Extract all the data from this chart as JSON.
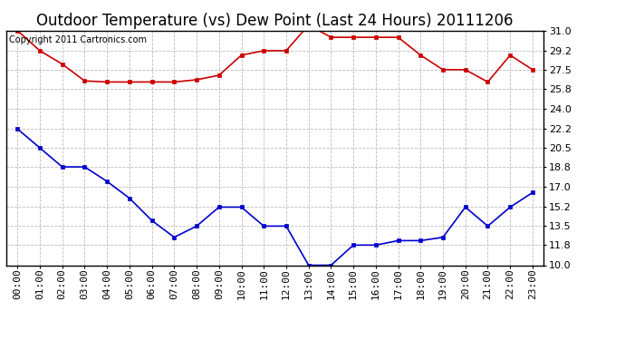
{
  "title": "Outdoor Temperature (vs) Dew Point (Last 24 Hours) 20111206",
  "copyright_text": "Copyright 2011 Cartronics.com",
  "x_labels": [
    "00:00",
    "01:00",
    "02:00",
    "03:00",
    "04:00",
    "05:00",
    "06:00",
    "07:00",
    "08:00",
    "09:00",
    "10:00",
    "11:00",
    "12:00",
    "13:00",
    "14:00",
    "15:00",
    "16:00",
    "17:00",
    "18:00",
    "19:00",
    "20:00",
    "21:00",
    "22:00",
    "23:00"
  ],
  "y_ticks": [
    10.0,
    11.8,
    13.5,
    15.2,
    17.0,
    18.8,
    20.5,
    22.2,
    24.0,
    25.8,
    27.5,
    29.2,
    31.0
  ],
  "y_min": 10.0,
  "y_max": 31.0,
  "red_data": [
    31.0,
    29.2,
    28.0,
    26.5,
    26.4,
    26.4,
    26.4,
    26.4,
    26.6,
    27.0,
    28.8,
    29.2,
    29.2,
    31.5,
    30.4,
    30.4,
    30.4,
    30.4,
    28.8,
    27.5,
    27.5,
    26.4,
    28.8,
    27.5
  ],
  "blue_data": [
    22.2,
    20.5,
    18.8,
    18.8,
    17.5,
    16.0,
    14.0,
    12.5,
    13.5,
    15.2,
    15.2,
    13.5,
    13.5,
    10.0,
    10.0,
    11.8,
    11.8,
    12.2,
    12.2,
    12.5,
    15.2,
    13.5,
    15.2,
    16.5
  ],
  "red_color": "#cc0000",
  "blue_color": "#0000cc",
  "bg_color": "#ffffff",
  "grid_color": "#bbbbbb",
  "title_fontsize": 12,
  "tick_fontsize": 8,
  "copyright_fontsize": 7
}
